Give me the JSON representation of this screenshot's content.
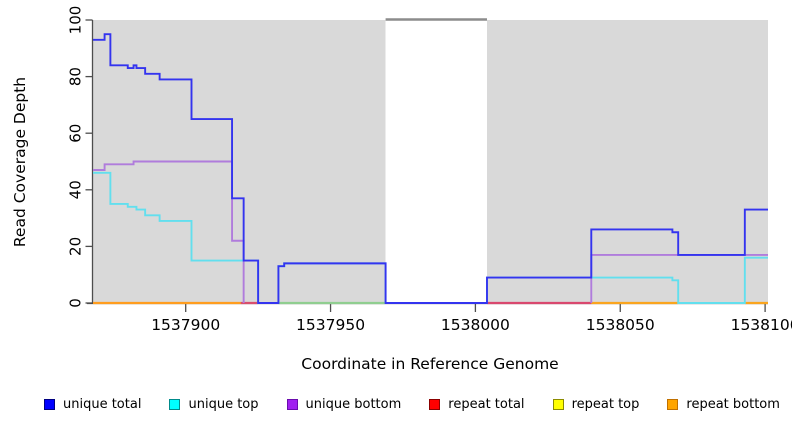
{
  "chart_data": {
    "type": "line",
    "subtype": "step-coverage",
    "title": "",
    "xlabel": "Coordinate in Reference Genome",
    "ylabel": "Read Coverage Depth",
    "xlim": [
      1537868,
      1538101
    ],
    "ylim": [
      0,
      100
    ],
    "x_ticks": [
      1537900,
      1537950,
      1538000,
      1538050,
      1538100
    ],
    "y_ticks": [
      0,
      20,
      40,
      60,
      80,
      100
    ],
    "grid": false,
    "plot_background": "#d9d9d9",
    "axis_color": "#4d4d4d",
    "no_data_region": {
      "from": 1537969,
      "to": 1538004,
      "fill": "#ffffff",
      "top_line_color": "#8c8c8c"
    },
    "series": [
      {
        "name": "unique total",
        "legend_fill": "#0000FF",
        "legend_border": "#000080",
        "line_color": "#3434EF",
        "segments": [
          {
            "points": [
              [
                1537868,
                93
              ],
              [
                1537872,
                95
              ],
              [
                1537874,
                84
              ],
              [
                1537880,
                83
              ],
              [
                1537882,
                84
              ],
              [
                1537883,
                83
              ],
              [
                1537886,
                81
              ],
              [
                1537891,
                79
              ],
              [
                1537902,
                65
              ],
              [
                1537916,
                37
              ],
              [
                1537920,
                15
              ],
              [
                1537925,
                0
              ],
              [
                1537932,
                13
              ],
              [
                1537934,
                14
              ],
              [
                1537969,
                0
              ],
              [
                1538004,
                9
              ],
              [
                1538040,
                26
              ],
              [
                1538068,
                25
              ],
              [
                1538070,
                17
              ],
              [
                1538093,
                33
              ]
            ],
            "end": 1538101
          }
        ]
      },
      {
        "name": "unique top",
        "legend_fill": "#00FFFF",
        "legend_border": "#008B8B",
        "line_color": "#62DFEE",
        "segments": [
          {
            "points": [
              [
                1537868,
                46
              ],
              [
                1537874,
                35
              ],
              [
                1537880,
                34
              ],
              [
                1537883,
                33
              ],
              [
                1537886,
                31
              ],
              [
                1537891,
                29
              ],
              [
                1537902,
                15
              ],
              [
                1537925,
                0
              ],
              [
                1537932,
                13
              ],
              [
                1537934,
                14
              ],
              [
                1537969,
                0
              ],
              [
                1538004,
                9
              ],
              [
                1538068,
                8
              ],
              [
                1538070,
                0
              ],
              [
                1538093,
                16
              ]
            ],
            "end": 1538101
          }
        ]
      },
      {
        "name": "unique bottom",
        "legend_fill": "#A020F0",
        "legend_border": "#6A0DAD",
        "line_color": "#B07CDC",
        "segments": [
          {
            "points": [
              [
                1537868,
                47
              ],
              [
                1537872,
                49
              ],
              [
                1537882,
                50
              ],
              [
                1537916,
                22
              ],
              [
                1537920,
                0
              ]
            ],
            "end": 1537920
          },
          {
            "points": [
              [
                1538040,
                0
              ],
              [
                1538040,
                17
              ]
            ],
            "end": 1538101
          }
        ]
      },
      {
        "name": "repeat total",
        "legend_fill": "#FF0000",
        "legend_border": "#8B0000",
        "line_color": "#E05050",
        "segments": [
          {
            "points": [
              [
                1537868,
                0
              ]
            ],
            "end": 1538101
          }
        ]
      },
      {
        "name": "repeat top",
        "legend_fill": "#FFFF00",
        "legend_border": "#8B8B00",
        "line_color": "#EDED4A",
        "segments": [
          {
            "points": [
              [
                1537868,
                0
              ]
            ],
            "end": 1538101
          }
        ]
      },
      {
        "name": "repeat bottom",
        "legend_fill": "#FFA500",
        "legend_border": "#C07000",
        "line_color": "#FF9D1E",
        "segments": [
          {
            "points": [
              [
                1537868,
                0
              ]
            ],
            "end": 1538101
          }
        ]
      }
    ],
    "baseline_overlap_segments": [
      {
        "from": 1537868,
        "to": 1537919,
        "color": "#FF9D1E"
      },
      {
        "from": 1537919,
        "to": 1537925,
        "color": "#D94F6E"
      },
      {
        "from": 1537932,
        "to": 1537969,
        "color": "#90CE90"
      },
      {
        "from": 1538004,
        "to": 1538040,
        "color": "#D9486E"
      },
      {
        "from": 1538040,
        "to": 1538070,
        "color": "#FAA51E"
      },
      {
        "from": 1538093,
        "to": 1538101,
        "color": "#FAA51E"
      }
    ]
  },
  "legend": {
    "items": [
      {
        "label": "unique total",
        "fill": "#0000FF",
        "border": "#000080"
      },
      {
        "label": "unique top",
        "fill": "#00FFFF",
        "border": "#008B8B"
      },
      {
        "label": "unique bottom",
        "fill": "#A020F0",
        "border": "#6A0DAD"
      },
      {
        "label": "repeat total",
        "fill": "#FF0000",
        "border": "#8B0000"
      },
      {
        "label": "repeat top",
        "fill": "#FFFF00",
        "border": "#8B8B00"
      },
      {
        "label": "repeat bottom",
        "fill": "#FFA500",
        "border": "#C07000"
      }
    ]
  }
}
